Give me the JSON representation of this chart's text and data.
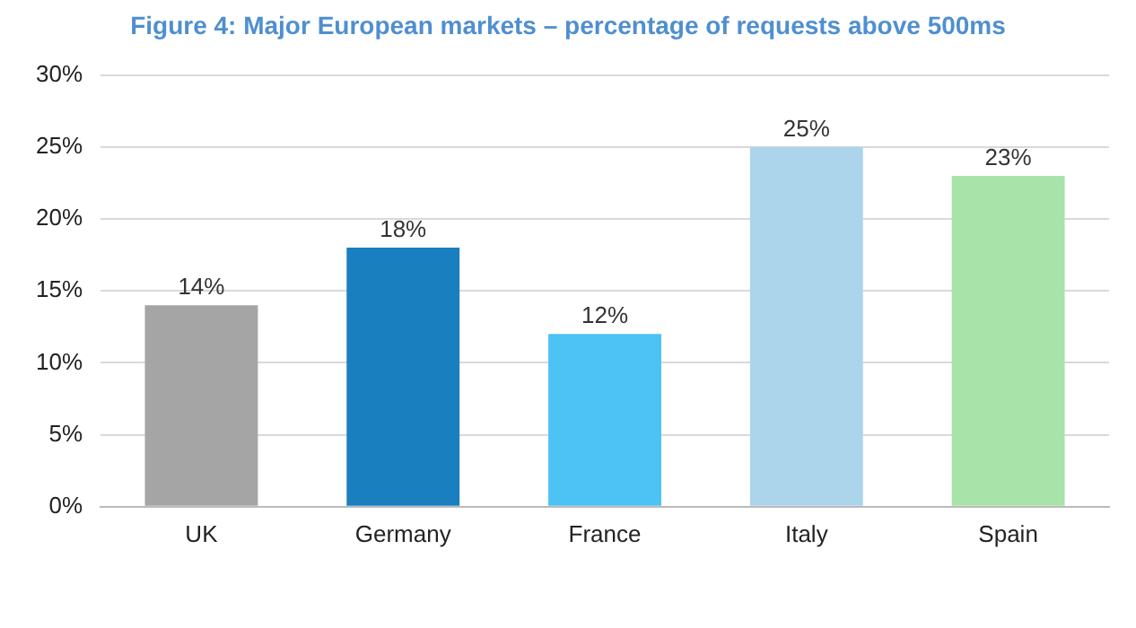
{
  "chart_data": {
    "type": "bar",
    "title": "Figure 4: Major European markets – percentage of requests above 500ms",
    "categories": [
      "UK",
      "Germany",
      "France",
      "Italy",
      "Spain"
    ],
    "values": [
      14,
      18,
      12,
      25,
      23
    ],
    "colors": [
      "#a5a5a5",
      "#1a7fbf",
      "#4cc2f5",
      "#acd5ec",
      "#a8e3a9"
    ],
    "value_labels": [
      "14%",
      "18%",
      "12%",
      "25%",
      "23%"
    ],
    "ylim": [
      0,
      30
    ],
    "yticks": [
      {
        "value": 0,
        "label": "0%"
      },
      {
        "value": 5,
        "label": "5%"
      },
      {
        "value": 10,
        "label": "10%"
      },
      {
        "value": 15,
        "label": "15%"
      },
      {
        "value": 20,
        "label": "20%"
      },
      {
        "value": 25,
        "label": "25%"
      },
      {
        "value": 30,
        "label": "30%"
      }
    ],
    "grid": "y",
    "legend": false
  }
}
